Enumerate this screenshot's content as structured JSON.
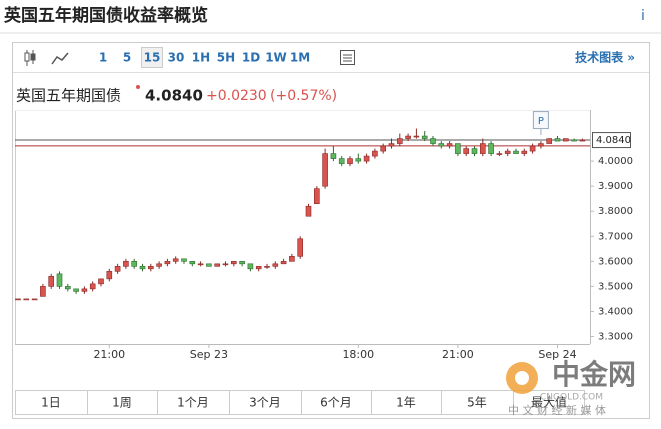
{
  "header": {
    "title": "英国五年期国债收益率概览",
    "info": "i"
  },
  "toolbar": {
    "intervals": [
      "1",
      "5",
      "15",
      "30",
      "1H",
      "5H",
      "1D",
      "1W",
      "1M"
    ],
    "selected_index": 2,
    "tech_link": "技术图表 »"
  },
  "quote": {
    "name": "英国五年期国债",
    "price": "4.0840",
    "change": "+0.0230",
    "change_pct": "(+0.57%)"
  },
  "ranges": [
    "1日",
    "1周",
    "1个月",
    "3个月",
    "6个月",
    "1年",
    "5年",
    "最大值"
  ],
  "watermark": {
    "brand": "中金网",
    "site": "CNGOLD.COM",
    "slogan": "中 文 财 经 新 媒 体"
  },
  "chart_data": {
    "type": "candlestick",
    "categories": [
      null,
      null,
      null,
      null,
      null,
      null,
      null,
      null,
      null,
      null,
      null,
      "21:00",
      null,
      null,
      null,
      null,
      null,
      null,
      null,
      null,
      null,
      null,
      null,
      "Sep 23",
      null,
      null,
      null,
      null,
      null,
      null,
      null,
      null,
      null,
      null,
      null,
      null,
      null,
      null,
      null,
      null,
      null,
      "18:00",
      null,
      null,
      null,
      null,
      null,
      null,
      null,
      null,
      null,
      null,
      null,
      "21:00",
      null,
      null,
      null,
      null,
      null,
      null,
      null,
      null,
      null,
      null,
      null,
      "Sep 24",
      null,
      null,
      null
    ],
    "open": [
      3.45,
      3.45,
      3.45,
      3.46,
      3.5,
      3.55,
      3.5,
      3.49,
      3.48,
      3.49,
      3.51,
      3.53,
      3.56,
      3.58,
      3.6,
      3.58,
      3.57,
      3.58,
      3.59,
      3.6,
      3.61,
      3.6,
      3.59,
      3.59,
      3.58,
      3.59,
      3.59,
      3.6,
      3.59,
      3.57,
      3.58,
      3.58,
      3.59,
      3.6,
      3.62,
      3.78,
      3.83,
      3.9,
      4.03,
      4.01,
      3.99,
      4.01,
      4.0,
      4.02,
      4.04,
      4.06,
      4.07,
      4.09,
      4.1,
      4.1,
      4.09,
      4.07,
      4.06,
      4.07,
      4.03,
      4.05,
      4.03,
      4.07,
      4.03,
      4.03,
      4.04,
      4.03,
      4.04,
      4.06,
      4.07,
      4.09,
      4.08,
      4.085,
      4.08
    ],
    "high": [
      3.45,
      3.45,
      3.45,
      3.51,
      3.55,
      3.56,
      3.51,
      3.49,
      3.5,
      3.52,
      3.53,
      3.57,
      3.59,
      3.61,
      3.61,
      3.59,
      3.59,
      3.6,
      3.61,
      3.62,
      3.61,
      3.6,
      3.6,
      3.59,
      3.59,
      3.6,
      3.6,
      3.6,
      3.59,
      3.58,
      3.59,
      3.6,
      3.61,
      3.63,
      3.7,
      3.83,
      3.9,
      4.05,
      4.06,
      4.02,
      4.02,
      4.03,
      4.03,
      4.05,
      4.07,
      4.09,
      4.11,
      4.11,
      4.13,
      4.12,
      4.1,
      4.08,
      4.08,
      4.07,
      4.06,
      4.06,
      4.09,
      4.08,
      4.04,
      4.05,
      4.05,
      4.05,
      4.07,
      4.08,
      4.09,
      4.1,
      4.09,
      4.09,
      4.09
    ],
    "low": [
      3.45,
      3.45,
      3.45,
      3.46,
      3.49,
      3.49,
      3.48,
      3.47,
      3.47,
      3.48,
      3.5,
      3.52,
      3.55,
      3.57,
      3.57,
      3.56,
      3.56,
      3.57,
      3.58,
      3.59,
      3.59,
      3.58,
      3.58,
      3.58,
      3.58,
      3.58,
      3.58,
      3.58,
      3.56,
      3.56,
      3.57,
      3.57,
      3.59,
      3.6,
      3.61,
      3.78,
      3.83,
      3.89,
      4.0,
      3.98,
      3.98,
      3.99,
      3.99,
      4.01,
      4.03,
      4.05,
      4.06,
      4.08,
      4.09,
      4.08,
      4.06,
      4.05,
      4.05,
      4.02,
      4.02,
      4.02,
      4.02,
      4.02,
      4.02,
      4.02,
      4.03,
      4.02,
      4.03,
      4.05,
      4.07,
      4.08,
      4.08,
      4.08,
      4.08
    ],
    "close": [
      3.45,
      3.45,
      3.45,
      3.5,
      3.54,
      3.5,
      3.49,
      3.48,
      3.49,
      3.51,
      3.53,
      3.56,
      3.58,
      3.6,
      3.58,
      3.57,
      3.58,
      3.59,
      3.6,
      3.61,
      3.6,
      3.59,
      3.59,
      3.58,
      3.59,
      3.59,
      3.6,
      3.59,
      3.57,
      3.58,
      3.58,
      3.59,
      3.6,
      3.62,
      3.69,
      3.82,
      3.89,
      4.03,
      4.01,
      3.99,
      4.01,
      4.0,
      4.02,
      4.04,
      4.06,
      4.07,
      4.09,
      4.1,
      4.1,
      4.09,
      4.07,
      4.06,
      4.07,
      4.03,
      4.05,
      4.03,
      4.07,
      4.03,
      4.03,
      4.04,
      4.03,
      4.04,
      4.06,
      4.07,
      4.09,
      4.08,
      4.09,
      4.08,
      4.084
    ],
    "up_color": "#d9534f",
    "down_color": "#5cb85c",
    "ylim": [
      3.27,
      4.2
    ],
    "yticks": [
      {
        "value": 3.3,
        "label": "3.3000"
      },
      {
        "value": 3.4,
        "label": "3.4000"
      },
      {
        "value": 3.5,
        "label": "3.5000"
      },
      {
        "value": 3.6,
        "label": "3.6000"
      },
      {
        "value": 3.7,
        "label": "3.7000"
      },
      {
        "value": 3.8,
        "label": "3.8000"
      },
      {
        "value": 3.9,
        "label": "3.9000"
      },
      {
        "value": 4.0,
        "label": "4.0000"
      }
    ],
    "last_price": {
      "value": 4.084,
      "label": "4.0840"
    },
    "prev_close": 4.061,
    "flag": "P"
  }
}
